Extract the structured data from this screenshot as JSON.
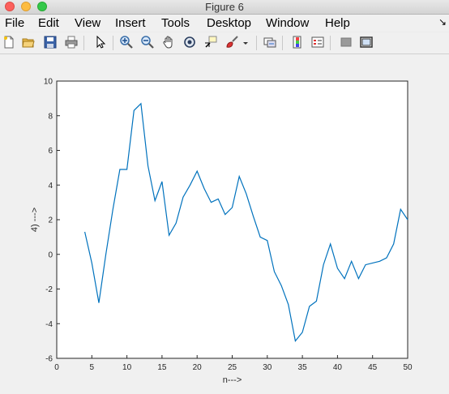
{
  "window": {
    "title": "Figure 6"
  },
  "menu": {
    "file": "File",
    "edit": "Edit",
    "view": "View",
    "insert": "Insert",
    "tools": "Tools",
    "desktop": "Desktop",
    "window": "Window",
    "help": "Help",
    "overflow_arrow": "↘"
  },
  "toolbar": {
    "icons": [
      "new-figure-icon",
      "open-file-icon",
      "save-icon",
      "print-icon",
      "pointer-icon",
      "zoom-in-icon",
      "zoom-out-icon",
      "pan-icon",
      "rotate-3d-icon",
      "data-cursor-icon",
      "brush-icon",
      "dropdown-arrow-icon",
      "link-plot-icon",
      "colorbar-icon",
      "legend-icon",
      "hide-plot-tools-icon",
      "show-plot-tools-icon"
    ]
  },
  "chart_data": {
    "type": "line",
    "title": "",
    "xlabel": "n--->",
    "ylabel": "4) --->",
    "xlim": [
      0,
      50
    ],
    "ylim": [
      -6,
      10
    ],
    "xticks": [
      0,
      5,
      10,
      15,
      20,
      25,
      30,
      35,
      40,
      45,
      50
    ],
    "yticks": [
      -6,
      -4,
      -2,
      0,
      2,
      4,
      6,
      8,
      10
    ],
    "grid": false,
    "series_color": "#0072bd",
    "series": [
      {
        "x": [
          4,
          5,
          6,
          7,
          8,
          9,
          10,
          11,
          12,
          13,
          14,
          15,
          16,
          17,
          18,
          19,
          20,
          21,
          22,
          23,
          24,
          25,
          26,
          27,
          28,
          29,
          30,
          31,
          32,
          33,
          34,
          35,
          36,
          37,
          38,
          39,
          40,
          41,
          42,
          43,
          44,
          45,
          46,
          47,
          48,
          49,
          50
        ],
        "values": [
          1.3,
          -0.5,
          -2.8,
          0,
          2.6,
          4.9,
          4.9,
          8.3,
          8.7,
          5.1,
          3.1,
          4.2,
          1.1,
          1.8,
          3.3,
          4.0,
          4.8,
          3.8,
          3.0,
          3.2,
          2.3,
          2.7,
          4.5,
          3.5,
          2.2,
          1.0,
          0.8,
          -1.0,
          -1.8,
          -2.9,
          -5.0,
          -4.5,
          -3.0,
          -2.7,
          -0.6,
          0.6,
          -0.8,
          -1.4,
          -0.4,
          -1.4,
          -0.6,
          -0.5,
          -0.4,
          -0.2,
          0.6,
          2.6,
          2.0
        ]
      }
    ]
  }
}
